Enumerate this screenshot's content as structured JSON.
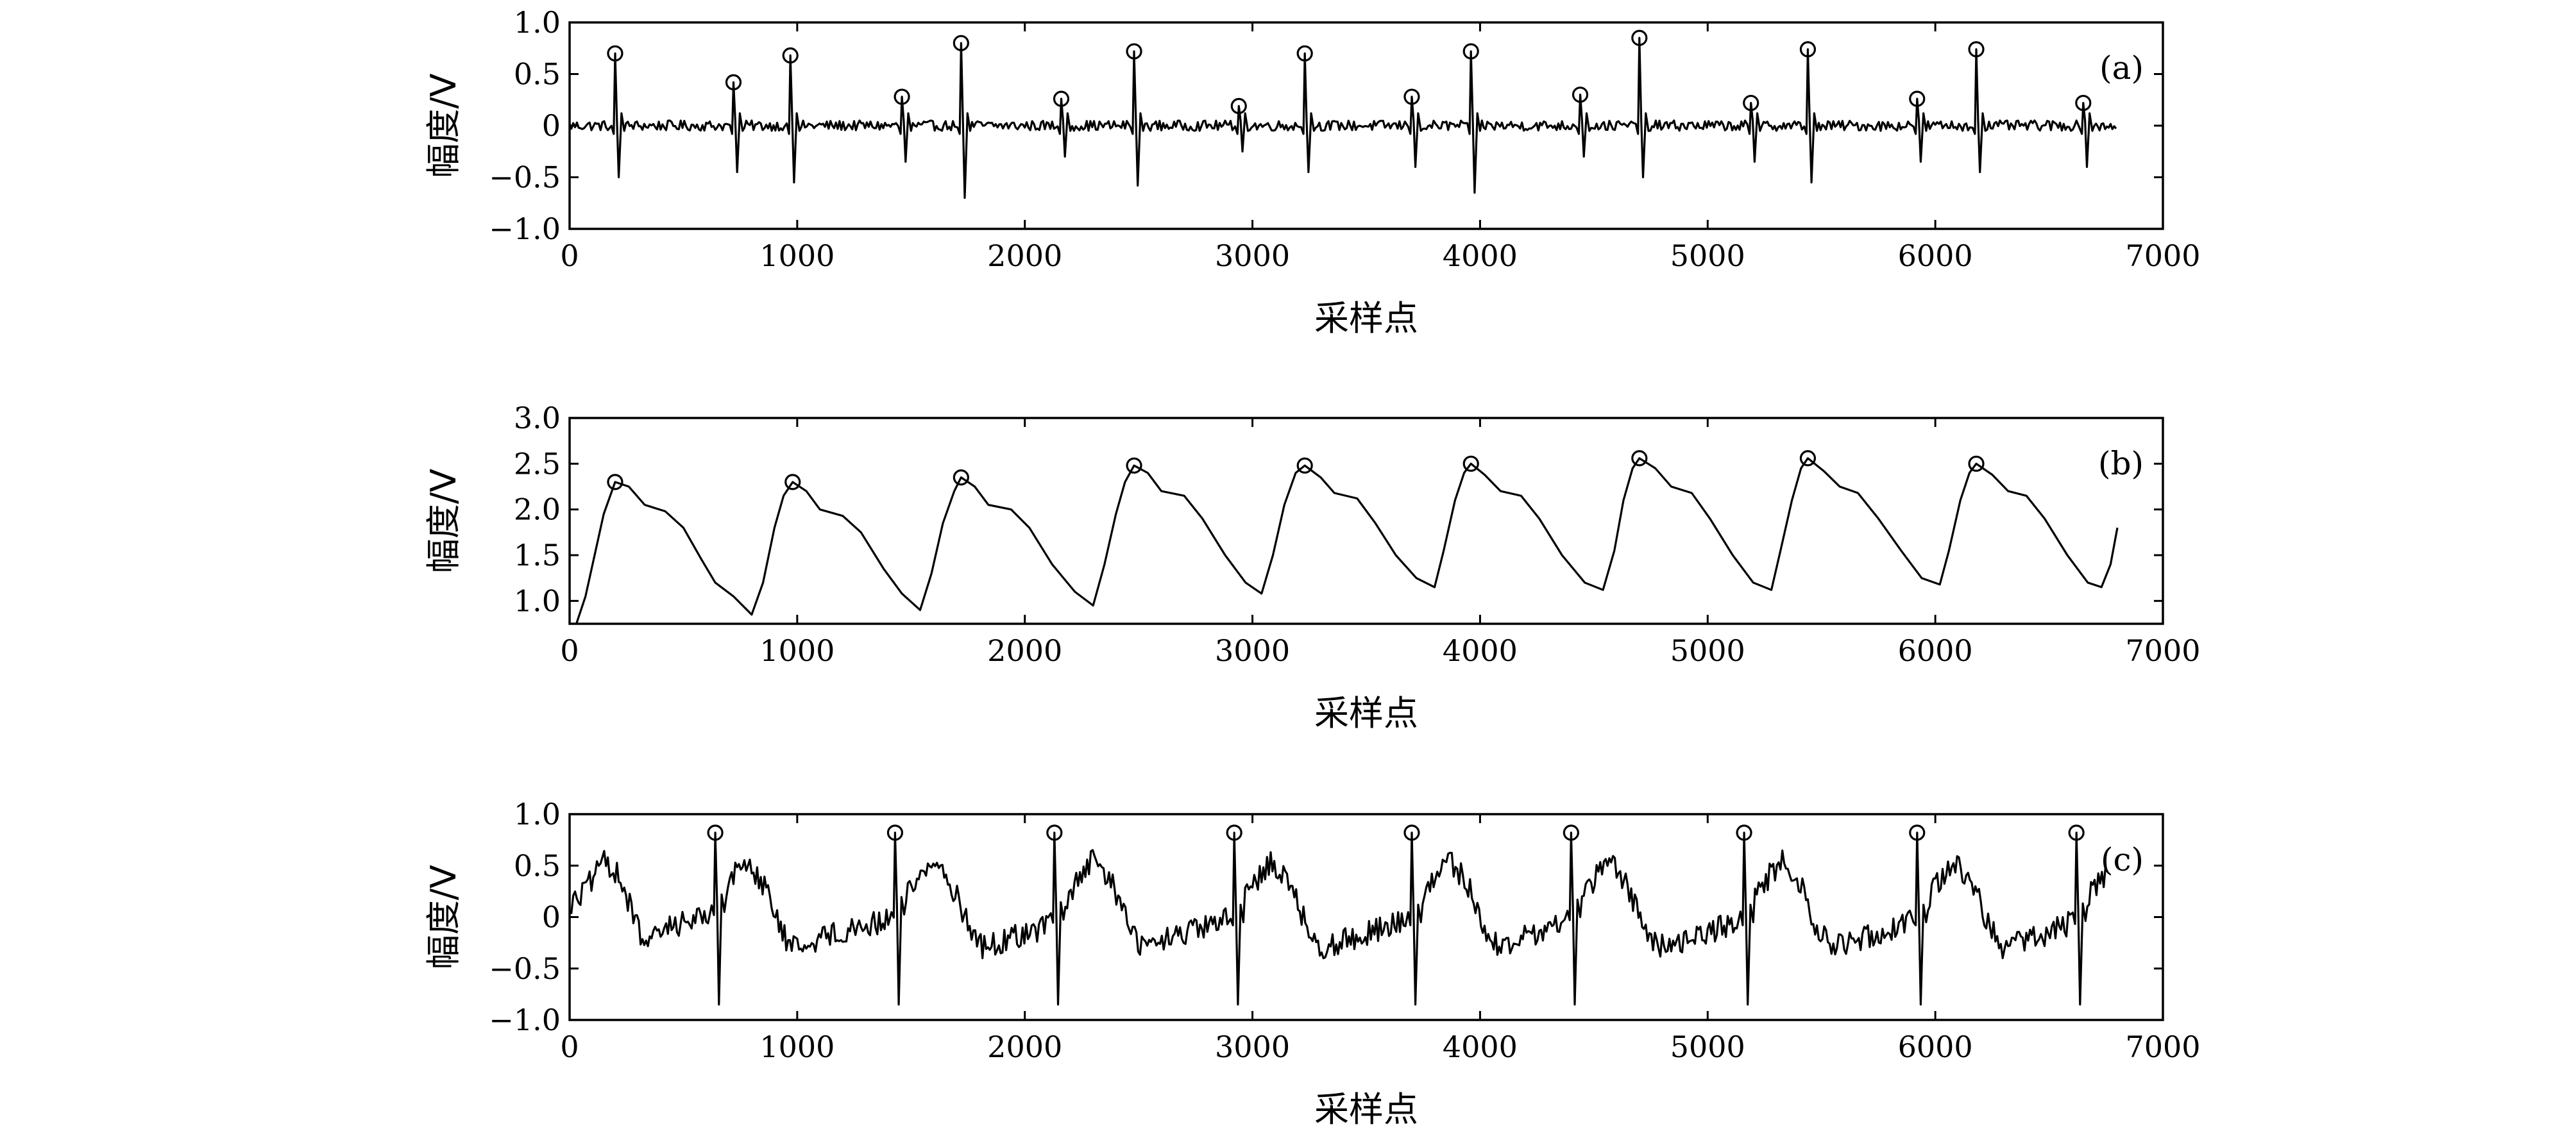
{
  "chart_data": [
    {
      "type": "line",
      "panel_label": "(a)",
      "xlabel": "采样点",
      "ylabel": "幅度/V",
      "xlim": [
        0,
        7000
      ],
      "ylim": [
        -1.0,
        1.0
      ],
      "xticks": [
        0,
        1000,
        2000,
        3000,
        4000,
        5000,
        6000,
        7000
      ],
      "xtick_labels": [
        "0",
        "1000",
        "2000",
        "3000",
        "4000",
        "5000",
        "6000",
        "7000"
      ],
      "yticks": [
        1.0,
        0.5,
        0,
        -0.5,
        -1.0
      ],
      "ytick_labels": [
        "1.0",
        "0.5",
        "0",
        "−0.5",
        "−1.0"
      ],
      "x_end": 6800,
      "baseline": 0.0,
      "noise_amplitude": 0.05,
      "markers": "circle",
      "peaks": [
        {
          "x": 200,
          "y": 0.7,
          "trough": -0.5
        },
        {
          "x": 720,
          "y": 0.42,
          "trough": -0.45
        },
        {
          "x": 970,
          "y": 0.68,
          "trough": -0.55
        },
        {
          "x": 1460,
          "y": 0.28,
          "trough": -0.35
        },
        {
          "x": 1720,
          "y": 0.8,
          "trough": -0.7
        },
        {
          "x": 2160,
          "y": 0.26,
          "trough": -0.3
        },
        {
          "x": 2480,
          "y": 0.72,
          "trough": -0.58
        },
        {
          "x": 2940,
          "y": 0.19,
          "trough": -0.25
        },
        {
          "x": 3230,
          "y": 0.7,
          "trough": -0.45
        },
        {
          "x": 3700,
          "y": 0.28,
          "trough": -0.4
        },
        {
          "x": 3960,
          "y": 0.72,
          "trough": -0.65
        },
        {
          "x": 4440,
          "y": 0.3,
          "trough": -0.3
        },
        {
          "x": 4700,
          "y": 0.85,
          "trough": -0.5
        },
        {
          "x": 5190,
          "y": 0.22,
          "trough": -0.35
        },
        {
          "x": 5440,
          "y": 0.74,
          "trough": -0.55
        },
        {
          "x": 5920,
          "y": 0.26,
          "trough": -0.35
        },
        {
          "x": 6180,
          "y": 0.74,
          "trough": -0.45
        },
        {
          "x": 6650,
          "y": 0.22,
          "trough": -0.4
        }
      ]
    },
    {
      "type": "line",
      "panel_label": "(b)",
      "xlabel": "采样点",
      "ylabel": "幅度/V",
      "xlim": [
        0,
        7000
      ],
      "ylim": [
        0.75,
        3.0
      ],
      "xticks": [
        0,
        1000,
        2000,
        3000,
        4000,
        5000,
        6000,
        7000
      ],
      "xtick_labels": [
        "0",
        "1000",
        "2000",
        "3000",
        "4000",
        "5000",
        "6000",
        "7000"
      ],
      "yticks": [
        3.0,
        2.5,
        2.0,
        1.5,
        1.0
      ],
      "ytick_labels": [
        "3.0",
        "2.5",
        "2.0",
        "1.5",
        "1.0"
      ],
      "markers": "circle",
      "line_points": [
        [
          0,
          0.75
        ],
        [
          30,
          0.75
        ],
        [
          70,
          1.05
        ],
        [
          110,
          1.5
        ],
        [
          150,
          1.95
        ],
        [
          200,
          2.3
        ],
        [
          260,
          2.25
        ],
        [
          330,
          2.05
        ],
        [
          420,
          1.98
        ],
        [
          500,
          1.8
        ],
        [
          580,
          1.45
        ],
        [
          640,
          1.2
        ],
        [
          720,
          1.05
        ],
        [
          800,
          0.85
        ],
        [
          850,
          1.2
        ],
        [
          900,
          1.8
        ],
        [
          940,
          2.15
        ],
        [
          980,
          2.3
        ],
        [
          1040,
          2.2
        ],
        [
          1100,
          2.0
        ],
        [
          1200,
          1.93
        ],
        [
          1280,
          1.75
        ],
        [
          1380,
          1.35
        ],
        [
          1460,
          1.08
        ],
        [
          1540,
          0.9
        ],
        [
          1590,
          1.3
        ],
        [
          1640,
          1.85
        ],
        [
          1690,
          2.2
        ],
        [
          1720,
          2.35
        ],
        [
          1780,
          2.25
        ],
        [
          1840,
          2.05
        ],
        [
          1940,
          2.0
        ],
        [
          2020,
          1.8
        ],
        [
          2120,
          1.4
        ],
        [
          2220,
          1.1
        ],
        [
          2300,
          0.95
        ],
        [
          2350,
          1.4
        ],
        [
          2400,
          1.95
        ],
        [
          2440,
          2.3
        ],
        [
          2480,
          2.48
        ],
        [
          2540,
          2.4
        ],
        [
          2600,
          2.2
        ],
        [
          2700,
          2.15
        ],
        [
          2780,
          1.9
        ],
        [
          2880,
          1.5
        ],
        [
          2970,
          1.2
        ],
        [
          3040,
          1.08
        ],
        [
          3090,
          1.5
        ],
        [
          3140,
          2.05
        ],
        [
          3190,
          2.4
        ],
        [
          3230,
          2.48
        ],
        [
          3300,
          2.35
        ],
        [
          3360,
          2.18
        ],
        [
          3460,
          2.12
        ],
        [
          3540,
          1.85
        ],
        [
          3630,
          1.5
        ],
        [
          3720,
          1.25
        ],
        [
          3800,
          1.15
        ],
        [
          3840,
          1.55
        ],
        [
          3890,
          2.1
        ],
        [
          3930,
          2.4
        ],
        [
          3960,
          2.5
        ],
        [
          4020,
          2.38
        ],
        [
          4090,
          2.2
        ],
        [
          4180,
          2.15
        ],
        [
          4260,
          1.9
        ],
        [
          4360,
          1.5
        ],
        [
          4460,
          1.2
        ],
        [
          4540,
          1.12
        ],
        [
          4590,
          1.55
        ],
        [
          4630,
          2.1
        ],
        [
          4670,
          2.45
        ],
        [
          4700,
          2.56
        ],
        [
          4770,
          2.45
        ],
        [
          4840,
          2.25
        ],
        [
          4930,
          2.18
        ],
        [
          5010,
          1.9
        ],
        [
          5110,
          1.5
        ],
        [
          5200,
          1.2
        ],
        [
          5280,
          1.12
        ],
        [
          5320,
          1.55
        ],
        [
          5370,
          2.1
        ],
        [
          5410,
          2.45
        ],
        [
          5440,
          2.56
        ],
        [
          5510,
          2.42
        ],
        [
          5580,
          2.25
        ],
        [
          5660,
          2.18
        ],
        [
          5750,
          1.9
        ],
        [
          5850,
          1.55
        ],
        [
          5940,
          1.25
        ],
        [
          6020,
          1.18
        ],
        [
          6060,
          1.55
        ],
        [
          6110,
          2.1
        ],
        [
          6150,
          2.4
        ],
        [
          6180,
          2.5
        ],
        [
          6250,
          2.38
        ],
        [
          6320,
          2.2
        ],
        [
          6400,
          2.15
        ],
        [
          6480,
          1.9
        ],
        [
          6580,
          1.5
        ],
        [
          6670,
          1.2
        ],
        [
          6730,
          1.15
        ],
        [
          6770,
          1.4
        ],
        [
          6800,
          1.8
        ]
      ],
      "peaks": [
        {
          "x": 200,
          "y": 2.3
        },
        {
          "x": 980,
          "y": 2.3
        },
        {
          "x": 1720,
          "y": 2.35
        },
        {
          "x": 2480,
          "y": 2.48
        },
        {
          "x": 3230,
          "y": 2.48
        },
        {
          "x": 3960,
          "y": 2.5
        },
        {
          "x": 4700,
          "y": 2.56
        },
        {
          "x": 5440,
          "y": 2.56
        },
        {
          "x": 6180,
          "y": 2.5
        }
      ]
    },
    {
      "type": "line",
      "panel_label": "(c)",
      "xlabel": "采样点",
      "ylabel": "幅度/V",
      "xlim": [
        0,
        7000
      ],
      "ylim": [
        -1.0,
        1.0
      ],
      "xticks": [
        0,
        1000,
        2000,
        3000,
        4000,
        5000,
        6000,
        7000
      ],
      "xtick_labels": [
        "0",
        "1000",
        "2000",
        "3000",
        "4000",
        "5000",
        "6000",
        "7000"
      ],
      "yticks": [
        1.0,
        0.5,
        0,
        -0.5,
        -1.0
      ],
      "ytick_labels": [
        "1.0",
        "0.5",
        "0",
        "−0.5",
        "−1.0"
      ],
      "x_end": 6750,
      "noise_amplitude": 0.12,
      "markers": "circle",
      "envelope_points": [
        [
          0,
          0.1
        ],
        [
          80,
          0.3
        ],
        [
          160,
          0.55
        ],
        [
          220,
          0.4
        ],
        [
          280,
          0.0
        ],
        [
          340,
          -0.3
        ],
        [
          420,
          -0.1
        ],
        [
          500,
          -0.05
        ],
        [
          580,
          0.0
        ],
        [
          640,
          0.1
        ],
        [
          700,
          0.35
        ],
        [
          780,
          0.55
        ],
        [
          860,
          0.3
        ],
        [
          920,
          -0.1
        ],
        [
          980,
          -0.3
        ],
        [
          1100,
          -0.2
        ],
        [
          1250,
          -0.1
        ],
        [
          1380,
          -0.05
        ],
        [
          1440,
          0.1
        ],
        [
          1520,
          0.35
        ],
        [
          1600,
          0.55
        ],
        [
          1680,
          0.3
        ],
        [
          1760,
          -0.1
        ],
        [
          1820,
          -0.3
        ],
        [
          1950,
          -0.2
        ],
        [
          2080,
          -0.1
        ],
        [
          2140,
          0.05
        ],
        [
          2220,
          0.3
        ],
        [
          2300,
          0.55
        ],
        [
          2380,
          0.35
        ],
        [
          2460,
          -0.1
        ],
        [
          2520,
          -0.3
        ],
        [
          2650,
          -0.2
        ],
        [
          2800,
          -0.1
        ],
        [
          2920,
          0.0
        ],
        [
          3000,
          0.3
        ],
        [
          3080,
          0.55
        ],
        [
          3160,
          0.35
        ],
        [
          3240,
          -0.1
        ],
        [
          3300,
          -0.3
        ],
        [
          3440,
          -0.2
        ],
        [
          3580,
          -0.1
        ],
        [
          3700,
          0.0
        ],
        [
          3780,
          0.3
        ],
        [
          3860,
          0.55
        ],
        [
          3940,
          0.35
        ],
        [
          4020,
          -0.1
        ],
        [
          4080,
          -0.3
        ],
        [
          4200,
          -0.2
        ],
        [
          4320,
          -0.1
        ],
        [
          4400,
          0.05
        ],
        [
          4480,
          0.3
        ],
        [
          4560,
          0.55
        ],
        [
          4640,
          0.35
        ],
        [
          4720,
          -0.1
        ],
        [
          4780,
          -0.3
        ],
        [
          4920,
          -0.2
        ],
        [
          5060,
          -0.1
        ],
        [
          5160,
          0.0
        ],
        [
          5240,
          0.3
        ],
        [
          5320,
          0.55
        ],
        [
          5400,
          0.35
        ],
        [
          5480,
          -0.1
        ],
        [
          5540,
          -0.3
        ],
        [
          5680,
          -0.2
        ],
        [
          5820,
          -0.1
        ],
        [
          5920,
          0.0
        ],
        [
          6000,
          0.3
        ],
        [
          6080,
          0.55
        ],
        [
          6160,
          0.35
        ],
        [
          6240,
          -0.1
        ],
        [
          6300,
          -0.3
        ],
        [
          6440,
          -0.2
        ],
        [
          6560,
          -0.1
        ],
        [
          6640,
          0.05
        ],
        [
          6700,
          0.3
        ],
        [
          6750,
          0.4
        ]
      ],
      "peaks": [
        {
          "x": 640,
          "y": 0.82,
          "trough": -0.85
        },
        {
          "x": 1430,
          "y": 0.82,
          "trough": -0.85
        },
        {
          "x": 2130,
          "y": 0.82,
          "trough": -0.85
        },
        {
          "x": 2920,
          "y": 0.82,
          "trough": -0.85
        },
        {
          "x": 3700,
          "y": 0.82,
          "trough": -0.85
        },
        {
          "x": 4400,
          "y": 0.82,
          "trough": -0.85
        },
        {
          "x": 5160,
          "y": 0.82,
          "trough": -0.85
        },
        {
          "x": 5920,
          "y": 0.82,
          "trough": -0.85
        },
        {
          "x": 6620,
          "y": 0.82,
          "trough": -0.85
        }
      ]
    }
  ]
}
